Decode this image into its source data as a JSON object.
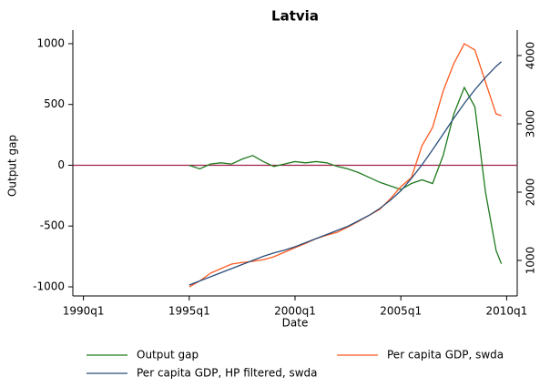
{
  "chart_data": {
    "type": "line",
    "title": "Latvia",
    "x_label": "Date",
    "y_label": "Output gap",
    "x": [
      1995,
      1995.5,
      1996,
      1996.5,
      1997,
      1997.5,
      1998,
      1998.5,
      1999,
      1999.5,
      2000,
      2000.5,
      2001,
      2001.5,
      2002,
      2002.5,
      2003,
      2003.5,
      2004,
      2004.5,
      2005,
      2005.5,
      2006,
      2006.5,
      2007,
      2007.5,
      2008,
      2008.5,
      2009,
      2009.5,
      2009.75
    ],
    "series": [
      {
        "name": "Output gap",
        "color": "#1f7a1f",
        "axis": "y",
        "values": [
          0,
          -30,
          10,
          20,
          10,
          50,
          80,
          30,
          -10,
          10,
          30,
          20,
          30,
          20,
          -10,
          -30,
          -60,
          -100,
          -140,
          -170,
          -200,
          -150,
          -120,
          -150,
          80,
          420,
          640,
          480,
          -220,
          -700,
          -810
        ]
      },
      {
        "name": "Per capita GDP, swda",
        "color": "#ff5a1f",
        "axis": "y2",
        "values": [
          613,
          700,
          813,
          880,
          947,
          970,
          987,
          1010,
          1053,
          1120,
          1187,
          1250,
          1320,
          1370,
          1413,
          1490,
          1573,
          1660,
          1747,
          1900,
          2080,
          2213,
          2680,
          2947,
          3480,
          3880,
          4173,
          4080,
          3613,
          3147,
          3120
        ]
      },
      {
        "name": "Per capita GDP, HP filtered, swda",
        "color": "#2a4d7a",
        "axis": "y2",
        "values": [
          640,
          700,
          760,
          820,
          880,
          940,
          1000,
          1060,
          1110,
          1150,
          1200,
          1260,
          1320,
          1380,
          1440,
          1500,
          1580,
          1660,
          1760,
          1880,
          2020,
          2200,
          2400,
          2620,
          2850,
          3080,
          3300,
          3500,
          3680,
          3840,
          3910
        ]
      }
    ],
    "xlim": [
      1989.5,
      2010.5
    ],
    "xticks": [
      {
        "value": 1990,
        "label": "1990q1"
      },
      {
        "value": 1995,
        "label": "1995q1"
      },
      {
        "value": 2000,
        "label": "2000q1"
      },
      {
        "value": 2005,
        "label": "2005q1"
      },
      {
        "value": 2010,
        "label": "2010q1"
      }
    ],
    "ylim": [
      -1075,
      1112
    ],
    "yticks": [
      -1000,
      -500,
      0,
      500,
      1000
    ],
    "y2lim": [
      480,
      4373
    ],
    "y2ticks": [
      1000,
      2000,
      3000,
      4000
    ],
    "reference_line": 0,
    "reference_color": "#a0204a",
    "grid": false,
    "legend_position": "bottom"
  }
}
